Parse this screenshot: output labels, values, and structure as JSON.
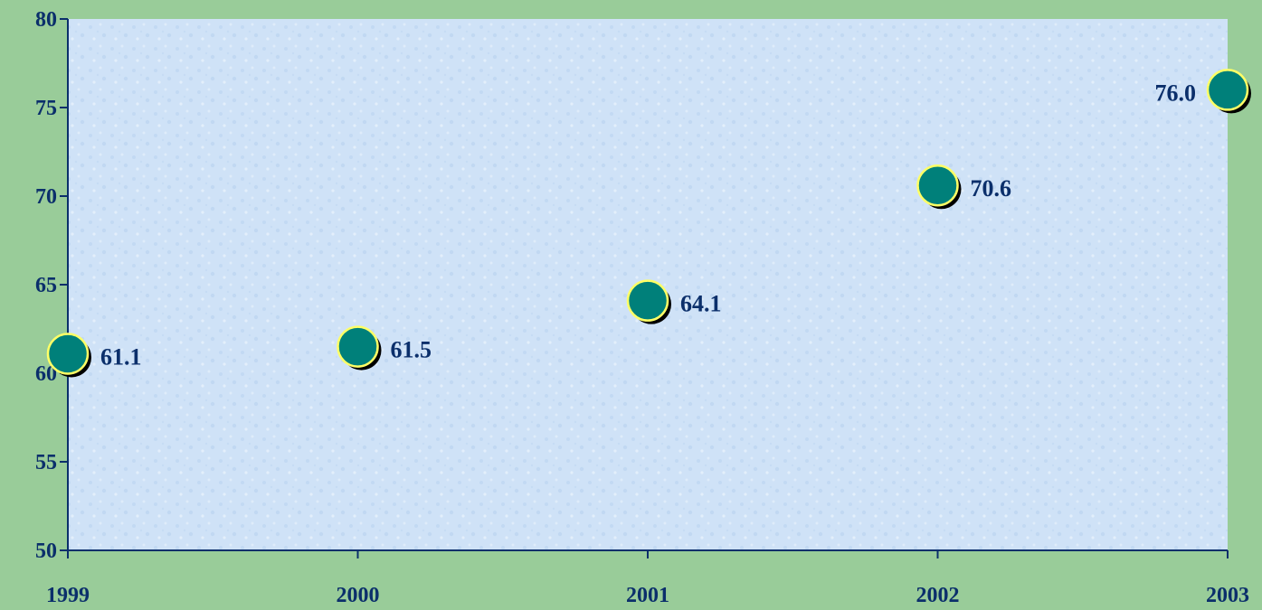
{
  "chart_data": {
    "type": "scatter",
    "x": [
      "1999",
      "2000",
      "2001",
      "2002",
      "2003"
    ],
    "series": [
      {
        "values": [
          61.1,
          61.5,
          64.1,
          70.6,
          76.0
        ]
      }
    ],
    "data_labels": [
      "61.1",
      "61.5",
      "64.1",
      "70.6",
      "76.0"
    ],
    "y_ticks": [
      "50",
      "55",
      "60",
      "65",
      "70",
      "75",
      "80"
    ],
    "ylim": [
      50,
      80
    ],
    "title": "",
    "xlabel": "",
    "ylabel": "",
    "grid": false,
    "legend": "none",
    "colors": {
      "background": "#99cc99",
      "plot_area": "#cfe2f7",
      "axis": "#0b2f6b",
      "marker_fill": "#00807a",
      "marker_outline": "#ffff66",
      "marker_shadow": "#000000",
      "text": "#0b2f6b"
    }
  }
}
